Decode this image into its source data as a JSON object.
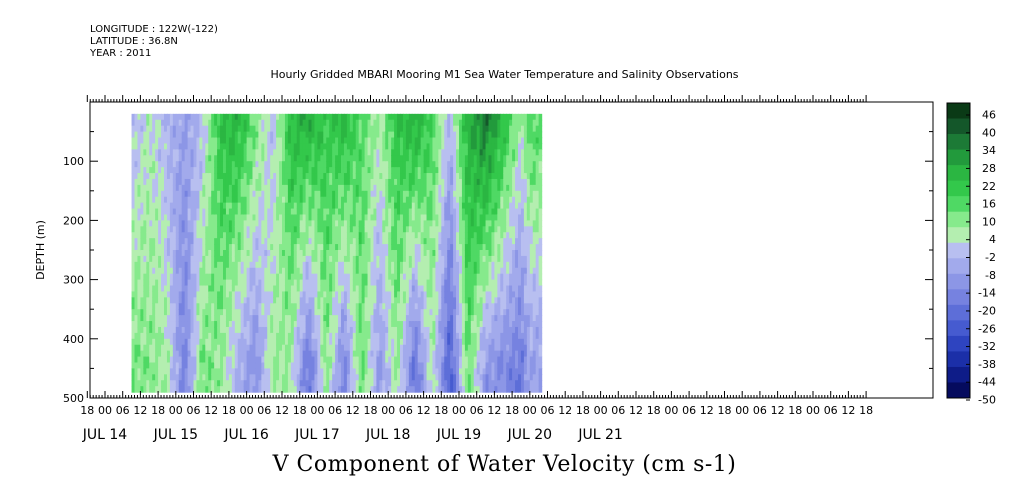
{
  "header": {
    "longitude": "LONGITUDE : 122W(-122)",
    "latitude": "LATITUDE : 36.8N",
    "year": "YEAR : 2011"
  },
  "chart_data": {
    "type": "heatmap",
    "title": "Hourly Gridded MBARI Mooring M1 Sea Water Temperature and Salinity Observations",
    "colorbar_title": "V Component of Water Velocity (cm s-1)",
    "ylabel": "DEPTH (m)",
    "ylim": [
      500,
      0
    ],
    "y_ticks": [
      100,
      200,
      300,
      400,
      500
    ],
    "x_hour_ticks": [
      "18",
      "00",
      "06",
      "12",
      "18",
      "00",
      "06",
      "12",
      "18",
      "00",
      "06",
      "12",
      "18",
      "00",
      "06",
      "12",
      "18",
      "00",
      "06",
      "12",
      "18",
      "00",
      "06",
      "12",
      "18",
      "00",
      "06",
      "12",
      "18",
      "00",
      "06",
      "12",
      "18",
      "00",
      "06",
      "12",
      "18",
      "00",
      "06",
      "12",
      "18",
      "00",
      "06",
      "12",
      "18"
    ],
    "x_day_labels": [
      "JUL 14",
      "JUL 15",
      "JUL 16",
      "JUL 17",
      "JUL 18",
      "JUL 19",
      "JUL 20",
      "JUL 21"
    ],
    "data_coverage": {
      "start": "JUL 14 03:00",
      "end": "JUL 20 04:00",
      "depth_top": 20,
      "depth_bottom": 490
    },
    "colorbar_labels": [
      "46",
      "40",
      "34",
      "28",
      "22",
      "16",
      "10",
      "4",
      "-2",
      "-8",
      "-14",
      "-20",
      "-26",
      "-32",
      "-38",
      "-44",
      "-50"
    ],
    "colorbar_range": [
      -50,
      49
    ],
    "band_time_hours": [
      3,
      9,
      15,
      21,
      27,
      33,
      39,
      45,
      51,
      57,
      63,
      69,
      75,
      81,
      87,
      93,
      99,
      105,
      111,
      117,
      123,
      129,
      135,
      141,
      144
    ],
    "band_velocity_upper": [
      -2,
      -3,
      4,
      -3,
      -8,
      -2,
      22,
      26,
      12,
      -2,
      24,
      28,
      20,
      26,
      14,
      6,
      22,
      28,
      16,
      -2,
      26,
      38,
      24,
      6,
      16
    ],
    "band_velocity_lower": [
      -10,
      12,
      10,
      6,
      -16,
      12,
      8,
      -4,
      -12,
      8,
      6,
      -20,
      10,
      -16,
      14,
      -10,
      8,
      -20,
      6,
      -26,
      14,
      -10,
      -14,
      -18,
      -8
    ]
  },
  "colors": {
    "colorbar": [
      "#0a3a16",
      "#14572a",
      "#1c7a36",
      "#229a3c",
      "#2bb642",
      "#33c84b",
      "#4fd964",
      "#86ea8c",
      "#b4eeb0",
      "#b8bff0",
      "#a2aaec",
      "#8c96e6",
      "#7682e0",
      "#5d6ed8",
      "#465bd0",
      "#2e44c0",
      "#1b2fa8",
      "#0e1c88",
      "#050b5e"
    ]
  }
}
